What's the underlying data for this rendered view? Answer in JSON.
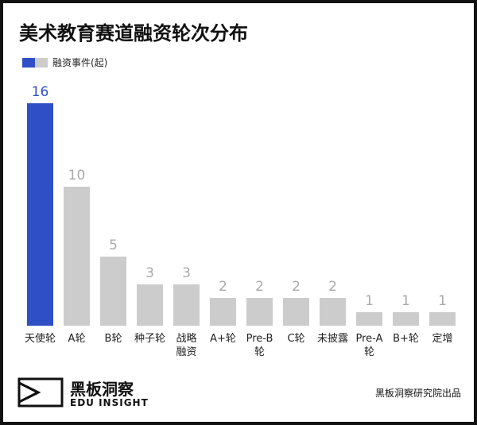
{
  "chart_data": {
    "type": "bar",
    "title": "美术教育赛道融资轮次分布",
    "legend_label": "融资事件(起)",
    "categories": [
      "天使轮",
      "A轮",
      "B轮",
      "种子轮",
      "战略融资",
      "A+轮",
      "Pre-B轮",
      "C轮",
      "未披露",
      "Pre-A轮",
      "B+轮",
      "定增"
    ],
    "values": [
      16,
      10,
      5,
      3,
      3,
      2,
      2,
      2,
      2,
      1,
      1,
      1
    ],
    "colors": [
      "#2e4fc6",
      "#cccccc",
      "#cccccc",
      "#cccccc",
      "#cccccc",
      "#cccccc",
      "#cccccc",
      "#cccccc",
      "#cccccc",
      "#cccccc",
      "#cccccc",
      "#cccccc"
    ]
  },
  "footer": {
    "logo_cn": "黑板洞察",
    "logo_en": "EDU INSIGHT",
    "source": "黑板洞察研究院出品"
  }
}
